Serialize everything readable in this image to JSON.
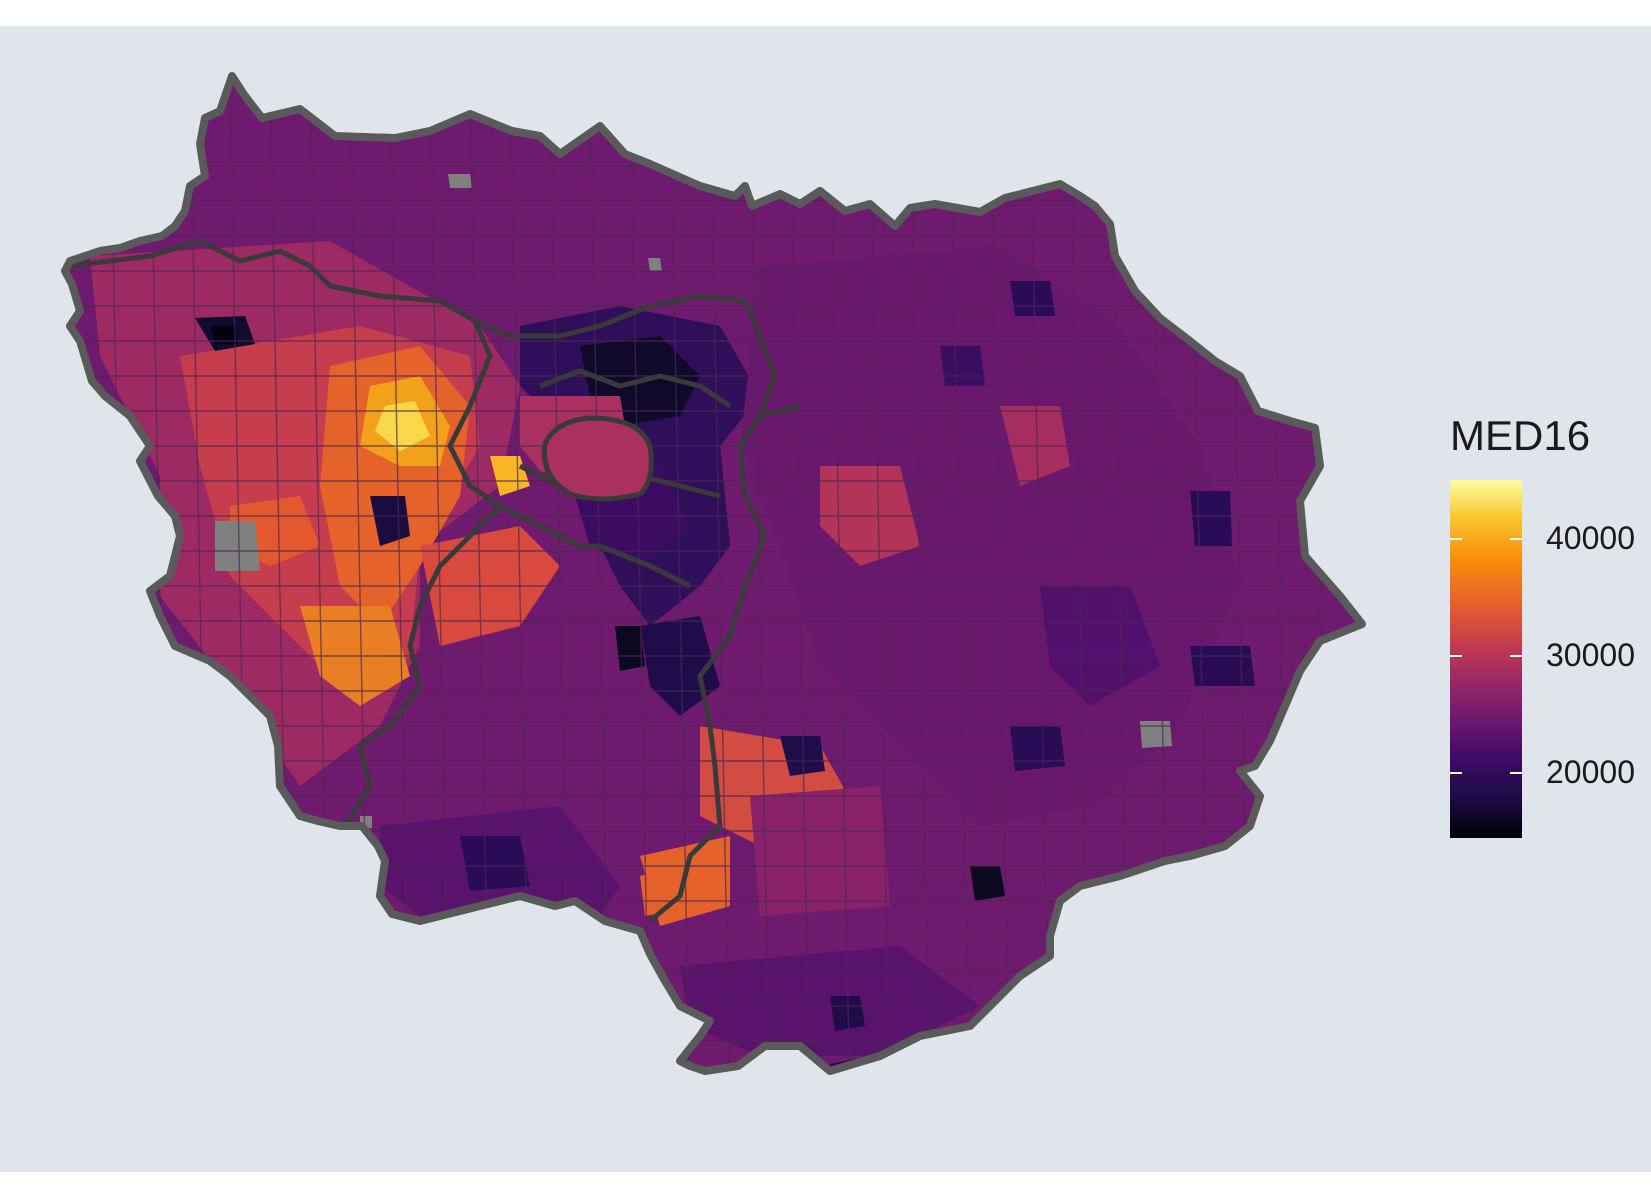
{
  "legend": {
    "title": "MED16",
    "labels": [
      "40000",
      "30000",
      "20000"
    ],
    "values": [
      40000,
      30000,
      20000
    ],
    "range": [
      14500,
      45000
    ]
  },
  "colors": {
    "panel_background": "#dfe5ea",
    "missing": "#808080",
    "border": "#3d3d3d",
    "scale": [
      "#fcffa4",
      "#f8c932",
      "#f98e09",
      "#e25734",
      "#bc3754",
      "#8a226a",
      "#6a176e",
      "#420a68",
      "#1f0c48",
      "#000004"
    ]
  }
}
